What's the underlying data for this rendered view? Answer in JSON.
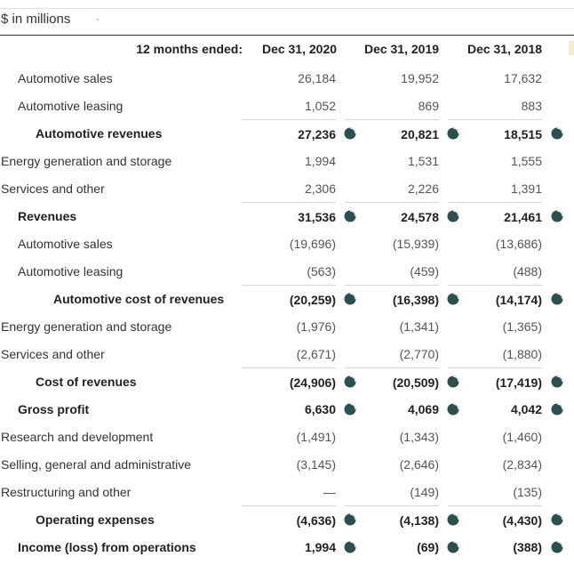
{
  "units_label": "$ in millions",
  "units_dot": "·",
  "header": {
    "label": "12 months ended:",
    "columns": [
      "Dec 31, 2020",
      "Dec 31, 2019",
      "Dec 31, 2018"
    ]
  },
  "accent_color": "#2e4f4f",
  "rows": [
    {
      "label": "Automotive sales",
      "indent": 1,
      "bold": false,
      "rule": false,
      "pie": false,
      "values": [
        "26,184",
        "19,952",
        "17,632"
      ]
    },
    {
      "label": "Automotive leasing",
      "indent": 1,
      "bold": false,
      "rule": false,
      "pie": false,
      "values": [
        "1,052",
        "869",
        "883"
      ]
    },
    {
      "label": "Automotive revenues",
      "indent": 2,
      "bold": true,
      "rule": true,
      "pie": true,
      "values": [
        "27,236",
        "20,821",
        "18,515"
      ]
    },
    {
      "label": "Energy generation and storage",
      "indent": 0,
      "bold": false,
      "rule": false,
      "pie": false,
      "values": [
        "1,994",
        "1,531",
        "1,555"
      ]
    },
    {
      "label": "Services and other",
      "indent": 0,
      "bold": false,
      "rule": false,
      "pie": false,
      "values": [
        "2,306",
        "2,226",
        "1,391"
      ]
    },
    {
      "label": "Revenues",
      "indent": 1,
      "bold": true,
      "rule": true,
      "pie": true,
      "values": [
        "31,536",
        "24,578",
        "21,461"
      ]
    },
    {
      "label": "Automotive sales",
      "indent": 1,
      "bold": false,
      "rule": false,
      "pie": false,
      "values": [
        "(19,696)",
        "(15,939)",
        "(13,686)"
      ]
    },
    {
      "label": "Automotive leasing",
      "indent": 1,
      "bold": false,
      "rule": false,
      "pie": false,
      "values": [
        "(563)",
        "(459)",
        "(488)"
      ]
    },
    {
      "label": "Automotive cost of revenues",
      "indent": 3,
      "bold": true,
      "rule": true,
      "pie": true,
      "values": [
        "(20,259)",
        "(16,398)",
        "(14,174)"
      ]
    },
    {
      "label": "Energy generation and storage",
      "indent": 0,
      "bold": false,
      "rule": false,
      "pie": false,
      "values": [
        "(1,976)",
        "(1,341)",
        "(1,365)"
      ]
    },
    {
      "label": "Services and other",
      "indent": 0,
      "bold": false,
      "rule": false,
      "pie": false,
      "values": [
        "(2,671)",
        "(2,770)",
        "(1,880)"
      ]
    },
    {
      "label": "Cost of revenues",
      "indent": 2,
      "bold": true,
      "rule": true,
      "pie": true,
      "values": [
        "(24,906)",
        "(20,509)",
        "(17,419)"
      ]
    },
    {
      "label": "Gross profit",
      "indent": 1,
      "bold": true,
      "rule": false,
      "pie": true,
      "values": [
        "6,630",
        "4,069",
        "4,042"
      ]
    },
    {
      "label": "Research and development",
      "indent": 0,
      "bold": false,
      "rule": false,
      "pie": false,
      "values": [
        "(1,491)",
        "(1,343)",
        "(1,460)"
      ]
    },
    {
      "label": "Selling, general and administrative",
      "indent": 0,
      "bold": false,
      "rule": false,
      "pie": false,
      "values": [
        "(3,145)",
        "(2,646)",
        "(2,834)"
      ]
    },
    {
      "label": "Restructuring and other",
      "indent": 0,
      "bold": false,
      "rule": false,
      "pie": false,
      "values": [
        "—",
        "(149)",
        "(135)"
      ]
    },
    {
      "label": "Operating expenses",
      "indent": 2,
      "bold": true,
      "rule": true,
      "pie": true,
      "values": [
        "(4,636)",
        "(4,138)",
        "(4,430)"
      ]
    },
    {
      "label": "Income (loss) from operations",
      "indent": 1,
      "bold": true,
      "rule": false,
      "pie": true,
      "values": [
        "1,994",
        "(69)",
        "(388)"
      ]
    }
  ]
}
